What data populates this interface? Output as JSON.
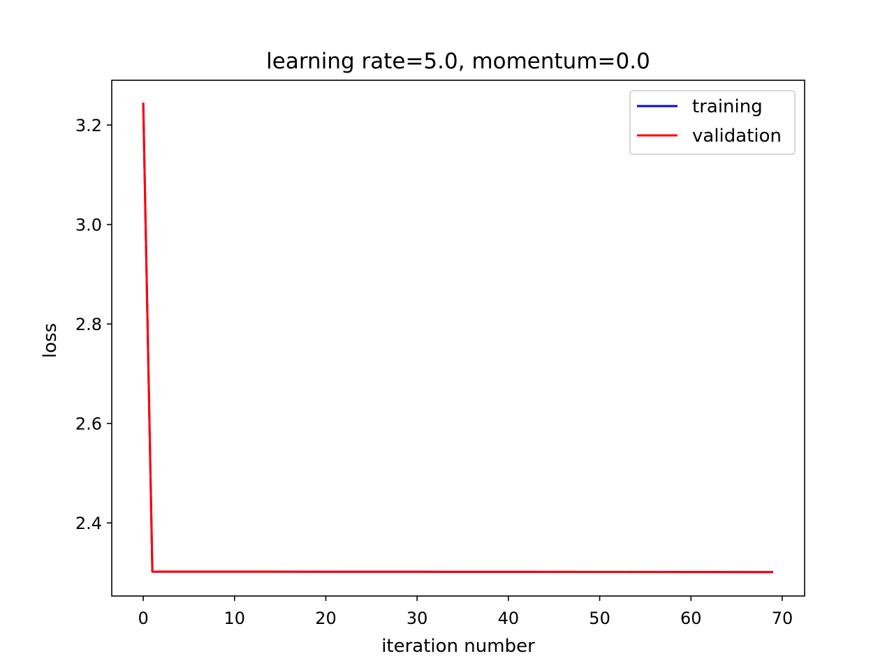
{
  "chart_data": {
    "type": "line",
    "title": "learning rate=5.0, momentum=0.0",
    "xlabel": "iteration number",
    "ylabel": "loss",
    "xlim": [
      -3.45,
      72.45
    ],
    "ylim": [
      2.253,
      3.29
    ],
    "xticks": [
      0,
      10,
      20,
      30,
      40,
      50,
      60,
      70
    ],
    "yticks": [
      2.4,
      2.6,
      2.8,
      3.0,
      3.2
    ],
    "x_tick_labels": [
      "0",
      "10",
      "20",
      "30",
      "40",
      "50",
      "60",
      "70"
    ],
    "y_tick_labels": [
      "2.4",
      "2.6",
      "2.8",
      "3.0",
      "3.2"
    ],
    "grid": false,
    "legend_position": "top-right",
    "series": [
      {
        "name": "training",
        "color": "#0000ff",
        "x": [
          0,
          1,
          5,
          10,
          20,
          30,
          40,
          50,
          60,
          69
        ],
        "y": [
          3.245,
          2.302,
          2.302,
          2.3019,
          2.3018,
          2.3017,
          2.3016,
          2.3014,
          2.3012,
          2.301
        ]
      },
      {
        "name": "validation",
        "color": "#ff0000",
        "x": [
          0,
          1,
          5,
          10,
          20,
          30,
          40,
          50,
          60,
          69
        ],
        "y": [
          3.245,
          2.302,
          2.302,
          2.3019,
          2.3018,
          2.3017,
          2.3016,
          2.3014,
          2.3012,
          2.301
        ]
      }
    ]
  }
}
